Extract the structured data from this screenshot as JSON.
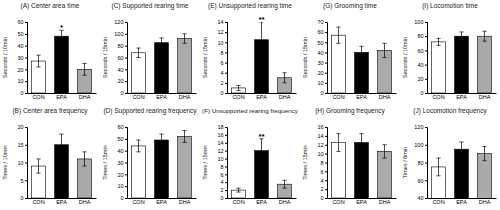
{
  "chart_data": [
    {
      "type": "bar",
      "title": "(A) Center area time",
      "ylabel": "Seconds / 10min",
      "categories": [
        "CON",
        "EPA",
        "DHA"
      ],
      "values": [
        27,
        48,
        20
      ],
      "errors": [
        5,
        5,
        5
      ],
      "colors": [
        "white",
        "black",
        "#aaaaaa"
      ],
      "ylim": [
        0,
        60
      ],
      "yticks": [
        0,
        10,
        20,
        30,
        40,
        50,
        60
      ],
      "annotations": [
        {
          "category": "EPA",
          "text": "*"
        }
      ],
      "grid": false
    },
    {
      "type": "bar",
      "title": "(C) Supported rearing time",
      "ylabel": "Seconds / 15min",
      "categories": [
        "CON",
        "EPA",
        "DHA"
      ],
      "values": [
        68,
        85,
        92
      ],
      "errors": [
        8,
        8,
        8
      ],
      "colors": [
        "white",
        "black",
        "#aaaaaa"
      ],
      "ylim": [
        0,
        120
      ],
      "yticks": [
        0,
        20,
        40,
        60,
        80,
        100,
        120
      ],
      "grid": false
    },
    {
      "type": "bar",
      "title": "(E) Unsupported rearing time",
      "ylabel": "Seconds / 15min",
      "categories": [
        "CON",
        "EPA",
        "DHA"
      ],
      "values": [
        1,
        10.5,
        3
      ],
      "errors": [
        0.5,
        3.5,
        1
      ],
      "colors": [
        "white",
        "black",
        "#aaaaaa"
      ],
      "ylim": [
        0,
        14
      ],
      "yticks": [
        0,
        2,
        4,
        6,
        8,
        10,
        12,
        14
      ],
      "annotations": [
        {
          "category": "EPA",
          "text": "**"
        }
      ],
      "grid": false
    },
    {
      "type": "bar",
      "title": "(G) Grooming time",
      "ylabel": "Seconds / 15min",
      "categories": [
        "CON",
        "EPA",
        "DHA"
      ],
      "values": [
        57,
        40,
        42
      ],
      "errors": [
        8,
        6,
        7
      ],
      "colors": [
        "white",
        "black",
        "#aaaaaa"
      ],
      "ylim": [
        0,
        70
      ],
      "yticks": [
        0,
        10,
        20,
        30,
        40,
        50,
        60,
        70
      ],
      "grid": false
    },
    {
      "type": "bar",
      "title": "(I) Locomotion time",
      "ylabel": "Seconds / 10min",
      "categories": [
        "CON",
        "EPA",
        "DHA"
      ],
      "values": [
        72,
        80,
        80
      ],
      "errors": [
        5,
        6,
        7
      ],
      "colors": [
        "white",
        "black",
        "#aaaaaa"
      ],
      "ylim": [
        0,
        100
      ],
      "yticks": [
        0,
        20,
        40,
        60,
        80,
        100
      ],
      "grid": false
    },
    {
      "type": "bar",
      "title": "(B) Center area frequency",
      "ylabel": "Times / 10min",
      "categories": [
        "CON",
        "EPA",
        "DHA"
      ],
      "values": [
        9,
        15,
        11
      ],
      "errors": [
        2,
        3,
        2
      ],
      "colors": [
        "white",
        "black",
        "#aaaaaa"
      ],
      "ylim": [
        0,
        20
      ],
      "yticks": [
        0,
        5,
        10,
        15,
        20
      ],
      "grid": false
    },
    {
      "type": "bar",
      "title": "(D) Supported rearing frequency",
      "ylabel": "Times / 15min",
      "categories": [
        "CON",
        "EPA",
        "DHA"
      ],
      "values": [
        44,
        49,
        52
      ],
      "errors": [
        5,
        5,
        5
      ],
      "colors": [
        "white",
        "black",
        "#aaaaaa"
      ],
      "ylim": [
        0,
        60
      ],
      "yticks": [
        0,
        10,
        20,
        30,
        40,
        50,
        60
      ],
      "grid": false
    },
    {
      "type": "bar",
      "title": "(F) Unsupported rearing frequency",
      "ylabel": "Times / 15min",
      "categories": [
        "CON",
        "EPA",
        "DHA"
      ],
      "values": [
        2,
        12,
        3.5
      ],
      "errors": [
        0.5,
        3,
        1
      ],
      "colors": [
        "white",
        "black",
        "#aaaaaa"
      ],
      "ylim": [
        0,
        18
      ],
      "yticks": [
        0,
        2,
        4,
        6,
        8,
        10,
        12,
        14,
        16,
        18
      ],
      "annotations": [
        {
          "category": "EPA",
          "text": "**"
        }
      ],
      "grid": false
    },
    {
      "type": "bar",
      "title": "(H) Grooming frequency",
      "ylabel": "Times / 15min",
      "categories": [
        "CON",
        "EPA",
        "DHA"
      ],
      "values": [
        12.5,
        12.5,
        10.5
      ],
      "errors": [
        2,
        2,
        1.5
      ],
      "colors": [
        "white",
        "black",
        "#aaaaaa"
      ],
      "ylim": [
        0,
        16
      ],
      "yticks": [
        0,
        2,
        4,
        6,
        8,
        10,
        12,
        14,
        16
      ],
      "grid": false
    },
    {
      "type": "bar",
      "title": "(J) Locomotion frequency",
      "ylabel": "Times / 6min",
      "categories": [
        "CON",
        "EPA",
        "DHA"
      ],
      "values": [
        75,
        95,
        90
      ],
      "errors": [
        10,
        8,
        8
      ],
      "colors": [
        "white",
        "black",
        "#aaaaaa"
      ],
      "ylim": [
        40,
        120
      ],
      "yticks": [
        40,
        60,
        80,
        100,
        120
      ],
      "grid": false
    }
  ]
}
